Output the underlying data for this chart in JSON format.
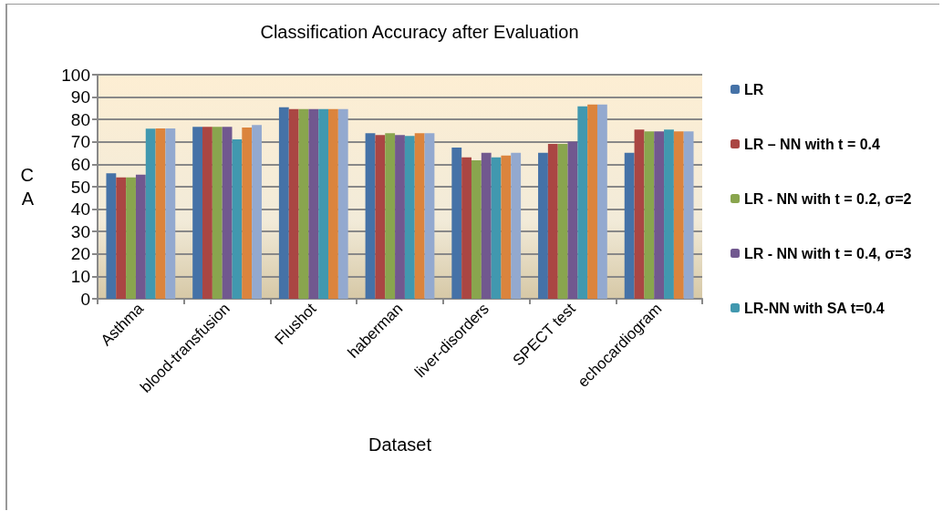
{
  "chart_data": {
    "type": "bar",
    "title": "Classification Accuracy after Evaluation",
    "xlabel": "Dataset",
    "ylabel": "C\nA",
    "categories": [
      "Asthma",
      "blood-transfusion",
      "Flushot",
      "haberman",
      "liver-disorders",
      "SPECT test",
      "echocardiogram"
    ],
    "series": [
      {
        "name": "LR",
        "color": "#4572a7",
        "values": [
          56,
          76.7,
          85.5,
          73.9,
          67.5,
          65.1,
          65.1
        ]
      },
      {
        "name": "LR – NN with t = 0.4",
        "color": "#aa4643",
        "values": [
          54.2,
          76.7,
          84.7,
          73.1,
          63.1,
          69.1,
          75.5
        ]
      },
      {
        "name": "LR - NN with t = 0.2, σ=2",
        "color": "#89a54e",
        "values": [
          54.2,
          76.7,
          84.7,
          73.9,
          61.8,
          69.1,
          74.7
        ]
      },
      {
        "name": "LR - NN with t = 0.4, σ=3",
        "color": "#71588f",
        "values": [
          55.4,
          76.7,
          84.7,
          73.1,
          65.1,
          70.1,
          74.7
        ]
      },
      {
        "name": "LR-NN with SA t=0.4",
        "color": "#4198af",
        "values": [
          75.9,
          71.1,
          84.7,
          72.7,
          63.1,
          85.9,
          75.5
        ]
      },
      {
        "color": "#db843d",
        "values": [
          76,
          76.4,
          84.7,
          73.9,
          63.9,
          86.7,
          74.7
        ]
      },
      {
        "color": "#93a9cf",
        "values": [
          76,
          77.5,
          84.7,
          73.9,
          65.1,
          86.7,
          74.7
        ]
      }
    ],
    "ylim": [
      0,
      100
    ],
    "yticks": [
      0,
      10,
      20,
      30,
      40,
      50,
      60,
      70,
      80,
      90,
      100
    ],
    "grid": "y",
    "legend": "right"
  }
}
